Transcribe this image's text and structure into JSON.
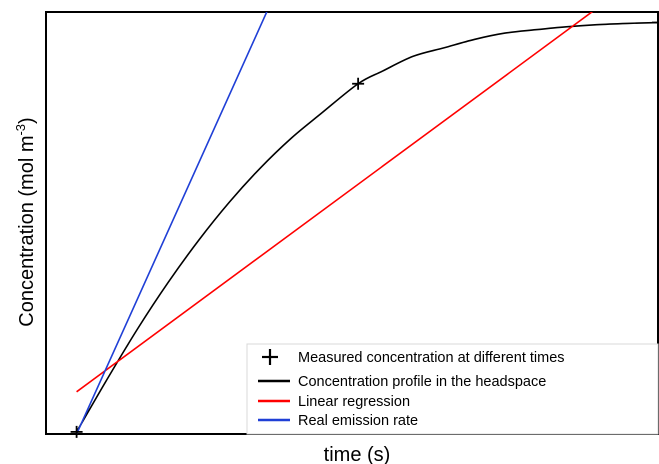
{
  "chart_data": {
    "type": "line",
    "title": "",
    "xlabel": "time (s)",
    "ylabel_main": "Concentration (mol m",
    "ylabel_sup": "-3",
    "ylabel_close": ")",
    "xlim": [
      0,
      10
    ],
    "ylim": [
      0,
      10
    ],
    "x_ticks_shown": false,
    "y_ticks_shown": false,
    "grid": false,
    "legend_placement": "bottom-right",
    "series": [
      {
        "name": "Measured concentration at different times",
        "kind": "markers",
        "marker": "plus",
        "color": "#000000",
        "points": [
          [
            0.5,
            0.05
          ],
          [
            5.1,
            8.3
          ],
          [
            10.0,
            9.75
          ]
        ]
      },
      {
        "name": "Concentration profile in the headspace",
        "kind": "curve",
        "color": "#000000",
        "points": [
          [
            0.5,
            0.05
          ],
          [
            1.0,
            1.3
          ],
          [
            1.5,
            2.5
          ],
          [
            2.0,
            3.6
          ],
          [
            2.5,
            4.6
          ],
          [
            3.0,
            5.5
          ],
          [
            3.5,
            6.3
          ],
          [
            4.0,
            7.0
          ],
          [
            4.5,
            7.6
          ],
          [
            5.1,
            8.3
          ],
          [
            5.5,
            8.6
          ],
          [
            6.0,
            8.95
          ],
          [
            6.5,
            9.15
          ],
          [
            7.0,
            9.35
          ],
          [
            7.5,
            9.5
          ],
          [
            8.0,
            9.58
          ],
          [
            8.5,
            9.65
          ],
          [
            9.0,
            9.7
          ],
          [
            9.5,
            9.73
          ],
          [
            10.0,
            9.75
          ]
        ]
      },
      {
        "name": "Linear regression",
        "kind": "line",
        "color": "#ff0000",
        "points": [
          [
            0.5,
            1.0
          ],
          [
            9.2,
            10.3
          ]
        ]
      },
      {
        "name": "Real emission rate",
        "kind": "line",
        "color": "#1f3fd6",
        "points": [
          [
            0.5,
            0.0
          ],
          [
            3.7,
            10.3
          ]
        ]
      }
    ]
  }
}
